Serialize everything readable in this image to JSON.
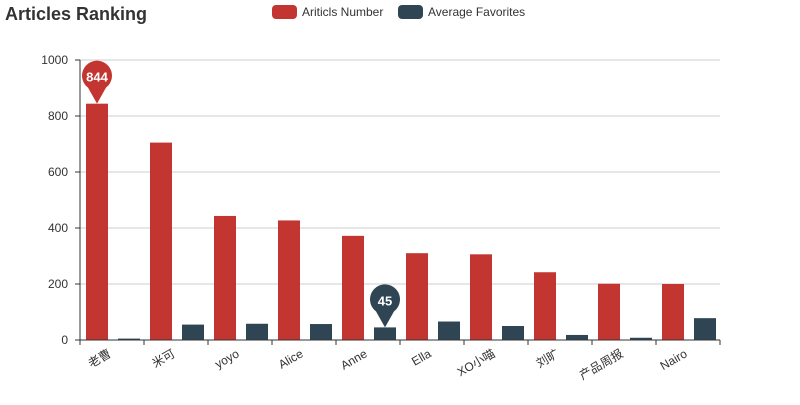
{
  "chart_data": {
    "type": "bar",
    "title": "Articles Ranking",
    "categories": [
      "老曹",
      "米可",
      "yoyo",
      "Alice",
      "Anne",
      "Ella",
      "XO小喵",
      "刘旷",
      "产品周报",
      "Nairo"
    ],
    "series": [
      {
        "name": "Ariticls Number",
        "color": "#c23531",
        "values": [
          844,
          705,
          443,
          427,
          372,
          310,
          306,
          242,
          201,
          200
        ]
      },
      {
        "name": "Average Favorites",
        "color": "#2f4554",
        "values": [
          5,
          55,
          58,
          57,
          45,
          66,
          50,
          18,
          8,
          78
        ]
      }
    ],
    "ylim": [
      0,
      1000
    ],
    "yticks": [
      0,
      200,
      400,
      600,
      800,
      1000
    ],
    "grid": true,
    "legend_position": "top-center",
    "markers": [
      {
        "series": 0,
        "index": 0,
        "label": "844"
      },
      {
        "series": 1,
        "index": 4,
        "label": "45"
      }
    ]
  }
}
